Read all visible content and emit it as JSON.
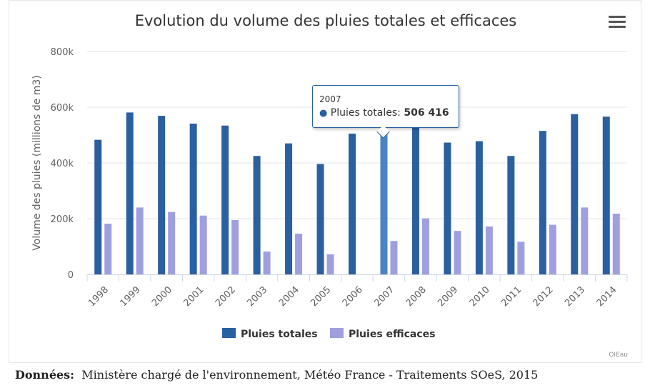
{
  "chart_data": {
    "type": "bar",
    "title": "Evolution du volume des pluies totales et efficaces",
    "ylabel": "Volume des pluies (millions de m3)",
    "xlabel": "",
    "ylim": [
      0,
      800000
    ],
    "yticks": [
      "0",
      "200k",
      "400k",
      "600k",
      "800k"
    ],
    "categories": [
      "1998",
      "1999",
      "2000",
      "2001",
      "2002",
      "2003",
      "2004",
      "2005",
      "2006",
      "2007",
      "2008",
      "2009",
      "2010",
      "2011",
      "2012",
      "2013",
      "2014"
    ],
    "series": [
      {
        "name": "Pluies totales",
        "color": "#2a5fa0",
        "values": [
          483000,
          581000,
          569000,
          541000,
          534000,
          425000,
          470000,
          396000,
          505000,
          506416,
          560000,
          473000,
          478000,
          425000,
          515000,
          575000,
          566000
        ]
      },
      {
        "name": "Pluies efficaces",
        "color": "#9f9fe0",
        "values": [
          182000,
          240000,
          224000,
          211000,
          195000,
          82000,
          146000,
          72000,
          0,
          120000,
          201000,
          156000,
          172000,
          117000,
          178000,
          240000,
          218000
        ]
      }
    ],
    "highlight_color": "#4a84c4",
    "legend_position": "bottom",
    "grid": true,
    "credits": "OIEau",
    "tooltip": {
      "category": "2007",
      "series": "Pluies totales",
      "value": "506 416"
    }
  },
  "menu_icon": "hamburger-menu-icon",
  "source": {
    "label": "Données:",
    "text": "Ministère chargé de l'environnement, Météo France - Traitements SOeS, 2015"
  }
}
